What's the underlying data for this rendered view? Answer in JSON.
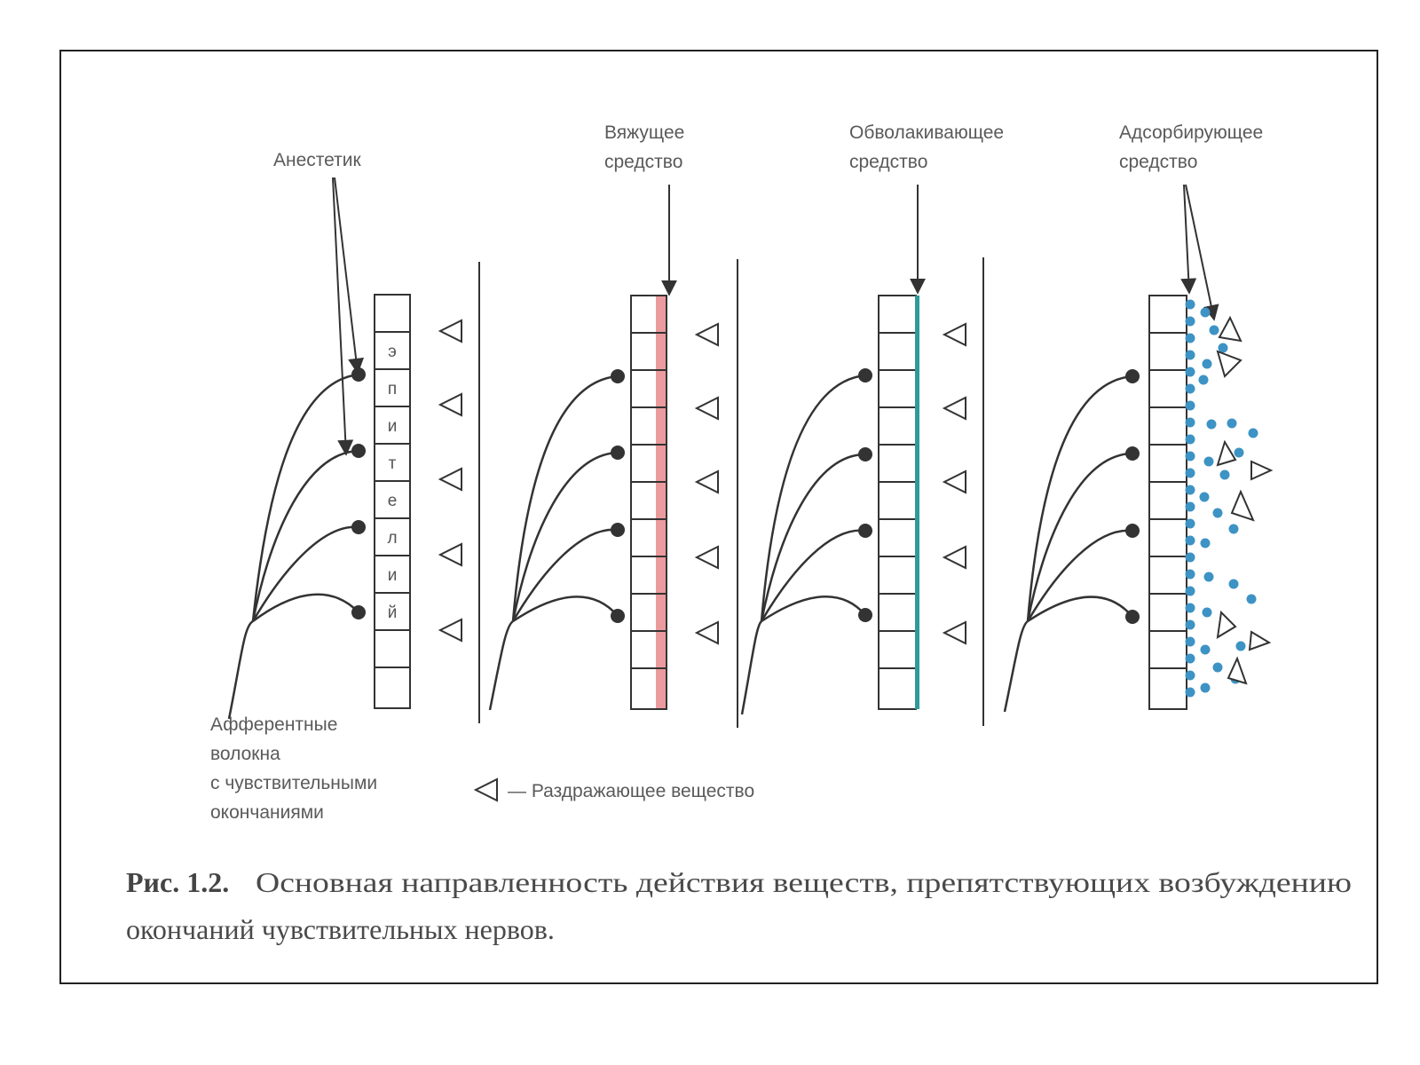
{
  "figure": {
    "labels": {
      "anesthetic": "Анестетик",
      "astringent": [
        "Вяжущее",
        "средство"
      ],
      "enveloping": [
        "Обволакивающее",
        "средство"
      ],
      "adsorbent": [
        "Адсорбирующее",
        "средство"
      ],
      "afferent": [
        "Афферентные",
        "волокна",
        "с чувствительными",
        "окончаниями"
      ],
      "legend": "— Раздражающее вещество"
    },
    "epithelium_letters": [
      "э",
      "п",
      "и",
      "т",
      "е",
      "л",
      "и",
      "й"
    ],
    "caption": {
      "label": "Рис. 1.2.",
      "line1": "Основная направленность действия веществ, препятствующих возбуждению",
      "line2": "окончаний чувствительных нервов."
    },
    "colors": {
      "frame": "#222222",
      "line": "#333333",
      "astringent_layer": "#e8898c",
      "enveloping_layer": "#2e9a9a",
      "adsorbent_dots": "#3d93c4"
    }
  }
}
